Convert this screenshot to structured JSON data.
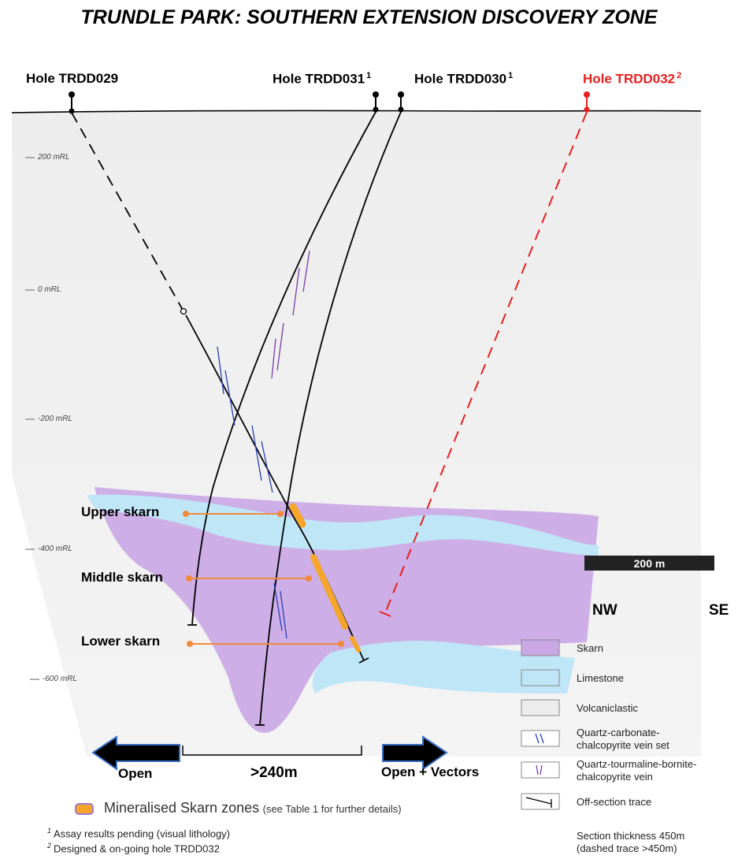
{
  "title": "TRUNDLE PARK: SOUTHERN EXTENSION DISCOVERY ZONE",
  "holes": [
    {
      "label": "Hole TRDD029",
      "note": ""
    },
    {
      "label": "Hole TRDD031",
      "note": "1"
    },
    {
      "label": "Hole TRDD030",
      "note": "1"
    },
    {
      "label": "Hole TRDD032",
      "note": "2"
    }
  ],
  "rl_labels": [
    "200 mRL",
    "0 mRL",
    "-200 mRL",
    "-400 mRL",
    "-600 mRL"
  ],
  "skarn_labels": [
    "Upper skarn",
    "Middle skarn",
    "Lower skarn"
  ],
  "scale_bar": "200 m",
  "direction": {
    "nw": "NW",
    "se": "SE"
  },
  "legend": [
    {
      "label": "Skarn"
    },
    {
      "label": "Limestone"
    },
    {
      "label": "Volcaniclastic"
    },
    {
      "label": "Quartz-carbonate-chalcopyrite vein set"
    },
    {
      "label": "Quartz-tourmaline-bornite-chalcopyrite vein"
    },
    {
      "label": "Off-section trace"
    }
  ],
  "section_note": [
    "Section thickness 450m",
    "(dashed trace >450m)"
  ],
  "open_left": "Open",
  "width_label": ">240m",
  "open_right": "Open + Vectors",
  "mineralised": {
    "label": "Mineralised Skarn zones",
    "note": "(see Table 1 for further details)"
  },
  "footnotes": [
    {
      "mark": "1",
      "text": "Assay results pending  (visual lithology)"
    },
    {
      "mark": "2",
      "text": "Designed  & on-going  hole TRDD032"
    }
  ],
  "colors": {
    "skarn": "#c9a6e4",
    "limestone": "#bfe6f7",
    "volcaniclastic": "#ececec",
    "mineralised": "#f5a52a",
    "planned_hole": "#e82020",
    "link_line": "#f08a3c",
    "quartz_carbonate_vein": "#2a3fb8",
    "quartz_tourmaline_vein": "#7a3ca8"
  }
}
